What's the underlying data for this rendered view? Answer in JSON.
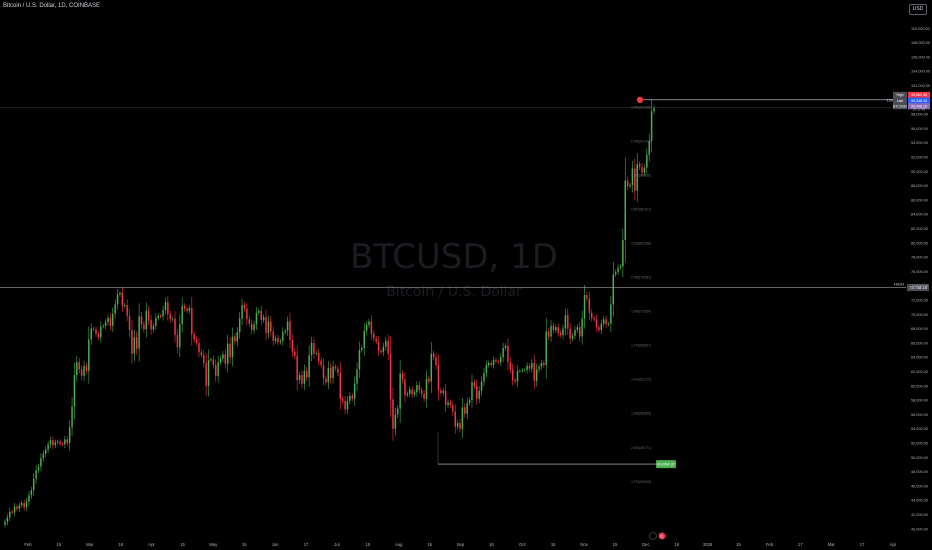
{
  "header": {
    "title": "Bitcoin / U.S. Dollar, 1D, COINBASE",
    "currency": "USD"
  },
  "watermark": {
    "symbol": "BTCUSD, 1D",
    "name": "Bitcoin / U.S. Dollar"
  },
  "colors": {
    "up": "#4caf50",
    "down": "#f23645",
    "background": "#000000",
    "resistance": "#9e9e9e",
    "alert": "#f23645",
    "target_label": "#8b6bb8",
    "low_label": "#4caf50"
  },
  "chart_data": {
    "type": "candlestick",
    "ylim": [
      39000,
      112000
    ],
    "y_ticks": [
      40000,
      42000,
      44000,
      46000,
      48000,
      50000,
      52000,
      54000,
      56000,
      58000,
      60000,
      62000,
      64000,
      66000,
      68000,
      70000,
      72000,
      74000,
      76000,
      78000,
      80000,
      82000,
      84000,
      86000,
      88000,
      90000,
      92000,
      94000,
      96000,
      98000,
      100000,
      102000,
      104000,
      106000,
      108000,
      110000
    ],
    "y_tick_labels": [
      "40,000.00",
      "42,000.00",
      "44,000.00",
      "46,000.00",
      "48,000.00",
      "50,000.00",
      "52,000.00",
      "54,000.00",
      "56,000.00",
      "58,000.00",
      "60,000.00",
      "62,000.00",
      "64,000.00",
      "66,000.00",
      "68,000.00",
      "70,000.00",
      "72,000.00",
      "74,000.00",
      "76,000.00",
      "78,000.00",
      "80,000.00",
      "82,000.00",
      "84,000.00",
      "86,000.00",
      "88,000.00",
      "90,000.00",
      "92,000.00",
      "94,000.00",
      "96,000.00",
      "98,000.00",
      "100,000.00",
      "102,000.00",
      "104,000.00",
      "106,000.00",
      "108,000.00",
      "110,000.00"
    ],
    "x_labels": [
      "Feb",
      "15",
      "Mar",
      "18",
      "Apr",
      "15",
      "May",
      "15",
      "Jun",
      "17",
      "Jul",
      "15",
      "Aug",
      "15",
      "Sep",
      "16",
      "Oct",
      "15",
      "Nov",
      "15",
      "Dec",
      "16",
      "2025",
      "15",
      "Feb",
      "17",
      "Mar",
      "17",
      "Apr"
    ],
    "closes": [
      41000,
      41600,
      42400,
      42300,
      43100,
      42800,
      43300,
      43600,
      43000,
      43800,
      44700,
      45400,
      47000,
      48200,
      48700,
      49900,
      50500,
      51100,
      51800,
      52400,
      51700,
      52100,
      52200,
      51900,
      51800,
      52500,
      52000,
      54200,
      57100,
      61500,
      63300,
      62300,
      61400,
      62800,
      62100,
      66500,
      68000,
      67900,
      67300,
      66800,
      68300,
      68400,
      68900,
      69500,
      68400,
      70100,
      71400,
      72800,
      73000,
      71200,
      71300,
      69800,
      67800,
      64500,
      66800,
      65200,
      69700,
      68600,
      67900,
      70500,
      69200,
      67900,
      68400,
      69500,
      69800,
      69700,
      70600,
      71700,
      70000,
      69300,
      69400,
      67100,
      65400,
      68600,
      71200,
      70800,
      70500,
      70900,
      67200,
      66500,
      66000,
      64700,
      64300,
      63200,
      60000,
      63600,
      63700,
      62900,
      61400,
      63300,
      63800,
      64400,
      63100,
      65900,
      64000,
      66900,
      66200,
      67500,
      69400,
      71300,
      70800,
      69300,
      68700,
      67800,
      68600,
      70200,
      70500,
      69200,
      69600,
      67400,
      69000,
      67600,
      66300,
      66700,
      66100,
      66300,
      67500,
      67700,
      69000,
      66400,
      64800,
      64200,
      60800,
      61500,
      60300,
      62100,
      61200,
      64300,
      66000,
      64500,
      64600,
      63500,
      62900,
      61000,
      60500,
      62500,
      61100,
      62700,
      62400,
      61800,
      58200,
      57900,
      56700,
      57900,
      58600,
      58200,
      60300,
      62300,
      65000,
      65300,
      67700,
      68500,
      69000,
      67300,
      66600,
      66200,
      64900,
      64700,
      65500,
      66300,
      64500,
      58100,
      54000,
      56000,
      56800,
      61700,
      60900,
      58700,
      58900,
      59500,
      58800,
      59100,
      60100,
      59400,
      58900,
      58200,
      61000,
      60600,
      64500,
      64000,
      62900,
      59400,
      59000,
      59300,
      57300,
      57700,
      57300,
      56400,
      54300,
      54800,
      54000,
      57000,
      56100,
      57600,
      58000,
      60500,
      60000,
      58200,
      59300,
      60600,
      61800,
      62900,
      63200,
      62900,
      63600,
      63400,
      63300,
      64000,
      65300,
      65600,
      63300,
      62300,
      60800,
      60600,
      62100,
      62100,
      62200,
      62200,
      62800,
      62400,
      63200,
      60700,
      62300,
      62700,
      63200,
      62900,
      67600,
      66900,
      68400,
      67800,
      68200,
      67400,
      67100,
      68000,
      69900,
      68000,
      66600,
      67000,
      67800,
      68200,
      66900,
      69400,
      72700,
      72200,
      70200,
      69500,
      69300,
      68200,
      67800,
      68700,
      69300,
      68600,
      68700,
      71400,
      75600,
      75900,
      76500,
      76700,
      80400,
      88700,
      87900,
      88100,
      90400,
      87300,
      91000,
      90600,
      89800,
      90500,
      92300,
      94300,
      98400,
      98900
    ]
  },
  "levels": {
    "resistance_price": "73,738.18",
    "resistance_name": "HIGH",
    "low_price": "49,054.37",
    "low_name": "49,054.37"
  },
  "price_tags": {
    "alert_price": "100000",
    "tag1_name": "High",
    "tag1_value": "99,662.46",
    "tag2_name": "Last",
    "tag2_value": "99,348.19",
    "tag3_name": "BTCUSD",
    "tag3_value": "99,348.19",
    "tag3_sub": "20:17:45"
  },
  "fib_labels": [
    "0.000(99,348)",
    "0.236(93,144)",
    "0.382(89,305)",
    "0.500(86,201)",
    "0.618(83,098)",
    "0.786(78,681)",
    "1.000(73,054)",
    "1.272(65,897)",
    "1.414(62,170)",
    "1.618(56,806)",
    "2.000(46,771)",
    "2.272(39,615)"
  ],
  "footer": {
    "button_label": "D"
  }
}
